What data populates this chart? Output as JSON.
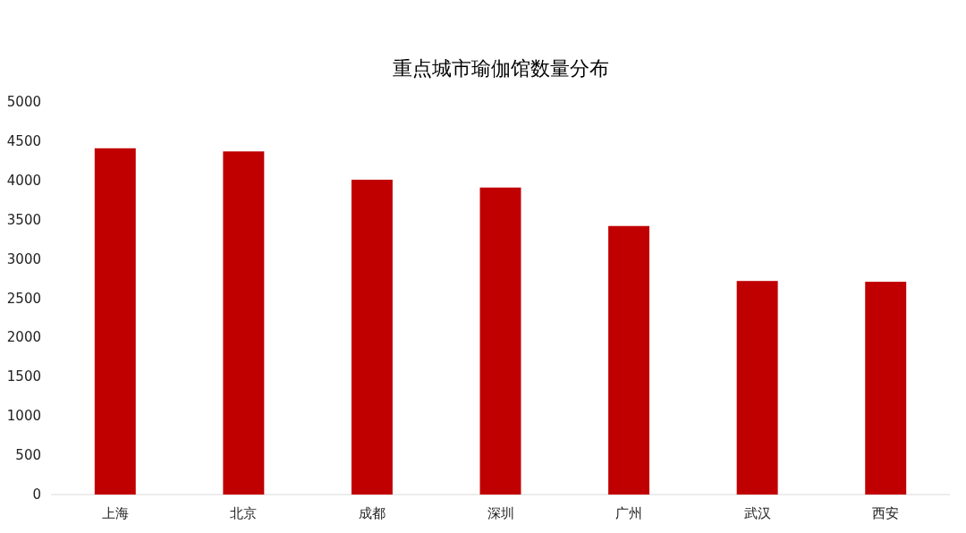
{
  "chart_data": {
    "type": "bar",
    "title": "重点城市瑜伽馆数量分布",
    "categories": [
      "上海",
      "北京",
      "成都",
      "深圳",
      "广州",
      "武汉",
      "西安"
    ],
    "values": [
      4410,
      4370,
      4010,
      3910,
      3420,
      2720,
      2710
    ],
    "color": "#c00000",
    "ylim": [
      0,
      5000
    ],
    "yticks": [
      0,
      500,
      1000,
      1500,
      2000,
      2500,
      3000,
      3500,
      4000,
      4500,
      5000
    ],
    "grid": false
  }
}
